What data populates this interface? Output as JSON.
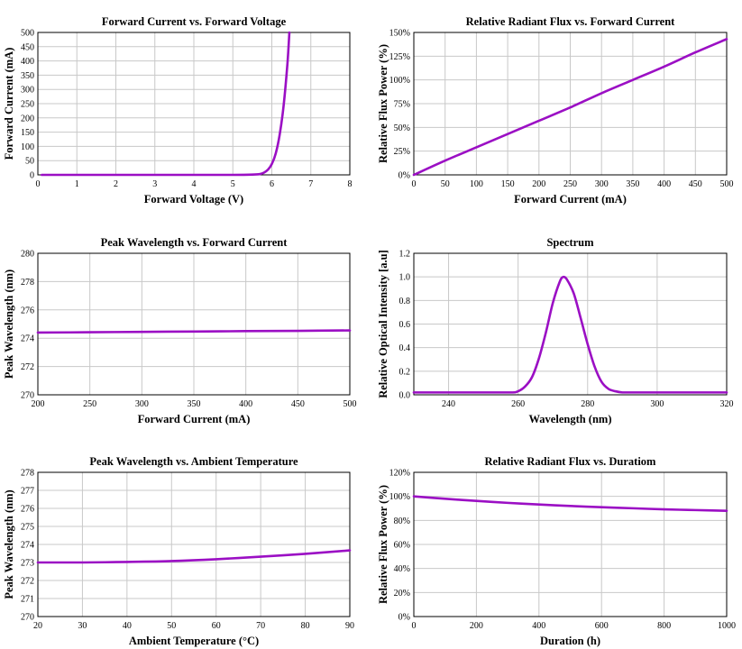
{
  "colors": {
    "series": "#9b0fc4",
    "grid": "#c8c8c8",
    "frame": "#000000"
  },
  "chart_data": [
    {
      "id": "iv",
      "type": "line",
      "title": "Forward Current vs. Forward Voltage",
      "xlabel": "Forward Voltage (V)",
      "ylabel": "Forward Current (mA)",
      "xlim": [
        0,
        8
      ],
      "ylim": [
        0,
        500
      ],
      "xticks": [
        0,
        1,
        2,
        3,
        4,
        5,
        6,
        7,
        8
      ],
      "yticks": [
        0,
        50,
        100,
        150,
        200,
        250,
        300,
        350,
        400,
        450,
        500
      ],
      "xticklabels": [
        "0",
        "1",
        "2",
        "3",
        "4",
        "5",
        "6",
        "7",
        "8"
      ],
      "yticklabels": [
        "0",
        "50",
        "100",
        "150",
        "200",
        "250",
        "300",
        "350",
        "400",
        "450",
        "500"
      ],
      "grid": true,
      "series": [
        {
          "x": [
            0.1,
            1,
            2,
            3,
            4,
            5,
            5.5,
            5.7,
            5.8,
            5.9,
            6.0,
            6.1,
            6.2,
            6.3,
            6.4,
            6.45
          ],
          "y": [
            0,
            0,
            0,
            0,
            0,
            0,
            1,
            3,
            8,
            18,
            38,
            75,
            140,
            240,
            390,
            500
          ]
        }
      ]
    },
    {
      "id": "flux-current",
      "type": "line",
      "title": "Relative Radiant Flux vs. Forward Current",
      "xlabel": "Forward Current (mA)",
      "ylabel": "Relative Flux Power (%)",
      "xlim": [
        0,
        500
      ],
      "ylim": [
        0,
        150
      ],
      "xticks": [
        0,
        50,
        100,
        150,
        200,
        250,
        300,
        350,
        400,
        450,
        500
      ],
      "yticks": [
        0,
        25,
        50,
        75,
        100,
        125,
        150
      ],
      "xticklabels": [
        "0",
        "50",
        "100",
        "150",
        "200",
        "250",
        "300",
        "350",
        "400",
        "450",
        "500"
      ],
      "yticklabels": [
        "0%",
        "25%",
        "50%",
        "75%",
        "100%",
        "125%",
        "150%"
      ],
      "grid": true,
      "series": [
        {
          "x": [
            0,
            50,
            100,
            150,
            200,
            250,
            300,
            350,
            400,
            450,
            500
          ],
          "y": [
            0,
            15,
            29,
            43,
            57,
            71,
            86,
            100,
            114,
            129,
            143
          ]
        }
      ]
    },
    {
      "id": "wl-current",
      "type": "line",
      "title": "Peak Wavelength vs. Forward Current",
      "xlabel": "Forward Current (mA)",
      "ylabel": "Peak Wavelength (nm)",
      "xlim": [
        200,
        500
      ],
      "ylim": [
        270,
        280
      ],
      "xticks": [
        200,
        250,
        300,
        350,
        400,
        450,
        500
      ],
      "yticks": [
        270,
        272,
        274,
        276,
        278,
        280
      ],
      "xticklabels": [
        "200",
        "250",
        "300",
        "350",
        "400",
        "450",
        "500"
      ],
      "yticklabels": [
        "270",
        "272",
        "274",
        "276",
        "278",
        "280"
      ],
      "grid": true,
      "series": [
        {
          "x": [
            200,
            250,
            300,
            350,
            400,
            450,
            500
          ],
          "y": [
            274.4,
            274.42,
            274.45,
            274.47,
            274.5,
            274.52,
            274.55
          ]
        }
      ]
    },
    {
      "id": "spectrum",
      "type": "line",
      "title": "Spectrum",
      "xlabel": "Wavelength (nm)",
      "ylabel": "Relative Optical Intensity [a.u]",
      "xlim": [
        230,
        320
      ],
      "ylim": [
        0,
        1.2
      ],
      "xticks": [
        240,
        260,
        280,
        300,
        320
      ],
      "yticks": [
        0,
        0.2,
        0.4,
        0.6,
        0.8,
        1.0,
        1.2
      ],
      "xticklabels": [
        "240",
        "260",
        "280",
        "300",
        "320"
      ],
      "yticklabels": [
        "0.0",
        "0.2",
        "0.4",
        "0.6",
        "0.8",
        "1.0",
        "1.2"
      ],
      "grid": true,
      "series": [
        {
          "x": [
            230,
            250,
            258,
            260,
            262,
            264,
            266,
            268,
            270,
            272,
            273,
            274,
            276,
            278,
            280,
            282,
            284,
            286,
            288,
            290,
            292,
            300,
            320
          ],
          "y": [
            0.02,
            0.02,
            0.02,
            0.03,
            0.07,
            0.15,
            0.31,
            0.53,
            0.78,
            0.96,
            1.0,
            0.98,
            0.86,
            0.65,
            0.43,
            0.24,
            0.11,
            0.05,
            0.03,
            0.02,
            0.02,
            0.02,
            0.02
          ]
        }
      ]
    },
    {
      "id": "wl-temp",
      "type": "line",
      "title": "Peak Wavelength vs. Ambient Temperature",
      "xlabel": "Ambient Temperature (°C)",
      "ylabel": "Peak Wavelength (nm)",
      "xlim": [
        20,
        90
      ],
      "ylim": [
        270,
        278
      ],
      "xticks": [
        20,
        30,
        40,
        50,
        60,
        70,
        80,
        90
      ],
      "yticks": [
        270,
        271,
        272,
        273,
        274,
        275,
        276,
        277,
        278
      ],
      "xticklabels": [
        "20",
        "30",
        "40",
        "50",
        "60",
        "70",
        "80",
        "90"
      ],
      "yticklabels": [
        "270",
        "271",
        "272",
        "273",
        "274",
        "275",
        "276",
        "277",
        "278"
      ],
      "grid": true,
      "series": [
        {
          "x": [
            20,
            30,
            40,
            50,
            60,
            70,
            80,
            90
          ],
          "y": [
            273.0,
            273.0,
            273.03,
            273.08,
            273.18,
            273.32,
            273.48,
            273.67
          ]
        }
      ]
    },
    {
      "id": "flux-duration",
      "type": "line",
      "title": "Relative Radiant Flux vs. Duratiom",
      "xlabel": "Duration (h)",
      "ylabel": "Relative Flux Power (%)",
      "xlim": [
        0,
        1000
      ],
      "ylim": [
        0,
        120
      ],
      "xticks": [
        0,
        200,
        400,
        600,
        800,
        1000
      ],
      "yticks": [
        0,
        20,
        40,
        60,
        80,
        100,
        120
      ],
      "xticklabels": [
        "0",
        "200",
        "400",
        "600",
        "800",
        "1000"
      ],
      "yticklabels": [
        "0%",
        "20%",
        "40%",
        "60%",
        "80%",
        "100%",
        "120%"
      ],
      "grid": true,
      "series": [
        {
          "x": [
            0,
            100,
            200,
            300,
            400,
            500,
            600,
            700,
            800,
            900,
            1000
          ],
          "y": [
            100,
            98,
            96.2,
            94.6,
            93.2,
            92,
            91,
            90.1,
            89.2,
            88.6,
            88
          ]
        }
      ]
    }
  ]
}
